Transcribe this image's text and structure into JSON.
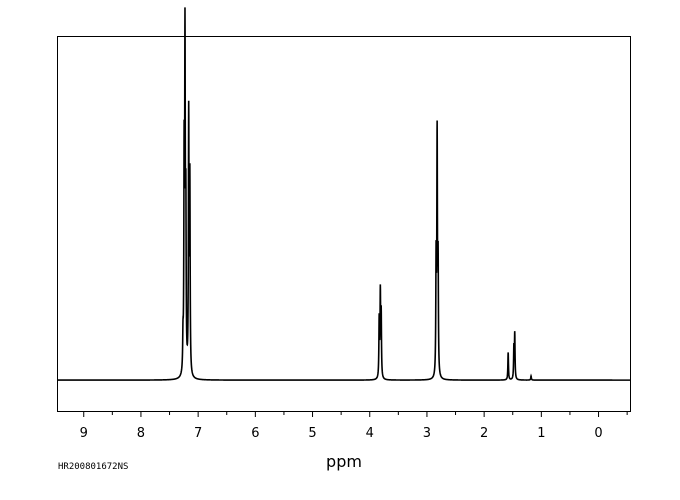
{
  "chart_data": {
    "type": "line",
    "title": "",
    "xlabel": "ppm",
    "ylabel": "",
    "x_reversed": true,
    "xlim": [
      9.45,
      -0.55
    ],
    "ylim": [
      -0.09,
      1.0
    ],
    "grid": false,
    "legend": "none",
    "sample_id": "HR200801672NS",
    "x_ticks": [
      9,
      8,
      7,
      6,
      5,
      4,
      3,
      2,
      1,
      0
    ],
    "x_tick_labels": [
      "9",
      "8",
      "7",
      "6",
      "5",
      "4",
      "3",
      "2",
      "1",
      "0"
    ],
    "minor_tick_step": 0.5,
    "baseline": 0,
    "peaks": [
      {
        "ppm": 7.265,
        "height": 0.09
      },
      {
        "ppm": 7.245,
        "height": 0.6
      },
      {
        "ppm": 7.23,
        "height": 0.93
      },
      {
        "ppm": 7.215,
        "height": 0.45
      },
      {
        "ppm": 7.165,
        "height": 0.75
      },
      {
        "ppm": 7.145,
        "height": 0.56
      },
      {
        "ppm": 3.835,
        "height": 0.17
      },
      {
        "ppm": 3.815,
        "height": 0.24
      },
      {
        "ppm": 3.8,
        "height": 0.18
      },
      {
        "ppm": 2.84,
        "height": 0.33
      },
      {
        "ppm": 2.822,
        "height": 0.69
      },
      {
        "ppm": 2.805,
        "height": 0.32
      },
      {
        "ppm": 1.58,
        "height": 0.08
      },
      {
        "ppm": 1.48,
        "height": 0.09
      },
      {
        "ppm": 1.465,
        "height": 0.13
      },
      {
        "ppm": 1.18,
        "height": 0.012
      }
    ]
  }
}
